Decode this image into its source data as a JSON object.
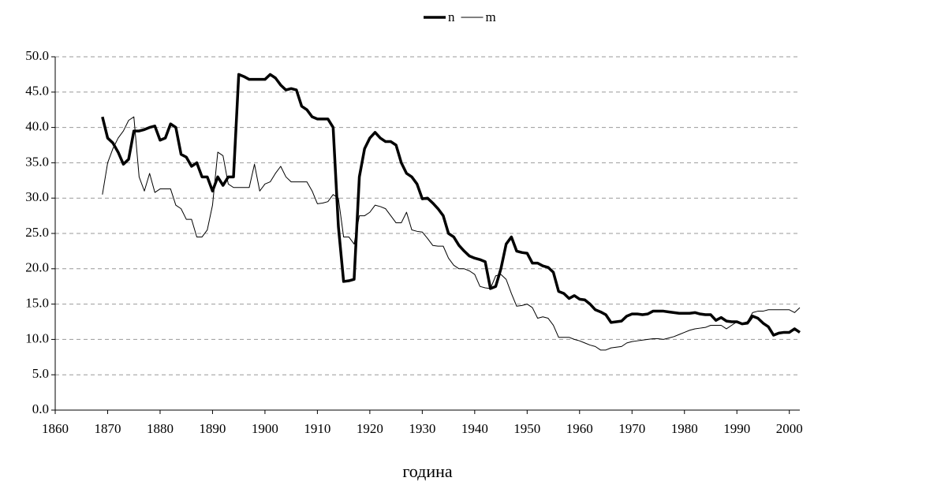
{
  "chart_data": {
    "type": "line",
    "x_label": "година",
    "x": [
      1869,
      1870,
      1871,
      1872,
      1873,
      1874,
      1875,
      1876,
      1877,
      1878,
      1879,
      1880,
      1881,
      1882,
      1883,
      1884,
      1885,
      1886,
      1887,
      1888,
      1889,
      1890,
      1891,
      1892,
      1893,
      1894,
      1895,
      1896,
      1897,
      1898,
      1899,
      1900,
      1901,
      1902,
      1903,
      1904,
      1905,
      1906,
      1907,
      1908,
      1909,
      1910,
      1911,
      1912,
      1913,
      1914,
      1915,
      1916,
      1917,
      1918,
      1919,
      1920,
      1921,
      1922,
      1923,
      1924,
      1925,
      1926,
      1927,
      1928,
      1929,
      1930,
      1931,
      1932,
      1933,
      1934,
      1935,
      1936,
      1937,
      1938,
      1939,
      1940,
      1941,
      1942,
      1943,
      1944,
      1945,
      1946,
      1947,
      1948,
      1949,
      1950,
      1951,
      1952,
      1953,
      1954,
      1955,
      1956,
      1957,
      1958,
      1959,
      1960,
      1961,
      1962,
      1963,
      1964,
      1965,
      1966,
      1967,
      1968,
      1969,
      1970,
      1971,
      1972,
      1973,
      1974,
      1975,
      1976,
      1977,
      1978,
      1979,
      1980,
      1981,
      1982,
      1983,
      1984,
      1985,
      1986,
      1987,
      1988,
      1989,
      1990,
      1991,
      1992,
      1993,
      1994,
      1995,
      1996,
      1997,
      1998,
      1999,
      2000,
      2001,
      2002
    ],
    "series": [
      {
        "name": "n",
        "color": "#000000",
        "width": 3.5,
        "values": [
          41.5,
          38.5,
          37.8,
          36.5,
          34.8,
          35.5,
          39.5,
          39.5,
          39.7,
          40,
          40.2,
          38.2,
          38.5,
          40.5,
          40,
          36.2,
          35.8,
          34.5,
          35,
          33,
          33,
          31,
          33,
          31.8,
          33,
          33,
          47.5,
          47.2,
          46.8,
          46.8,
          46.8,
          46.8,
          47.5,
          47,
          46,
          45.3,
          45.5,
          45.3,
          43,
          42.5,
          41.5,
          41.2,
          41.2,
          41.2,
          40,
          26,
          18.2,
          18.3,
          18.5,
          33,
          37,
          38.5,
          39.3,
          38.5,
          38,
          38,
          37.5,
          35,
          33.5,
          33,
          32,
          29.9,
          30,
          29.3,
          28.5,
          27.5,
          25,
          24.5,
          23.3,
          22.5,
          21.8,
          21.5,
          21.3,
          21,
          17.2,
          17.5,
          20,
          23.5,
          24.5,
          22.5,
          22.3,
          22.2,
          20.8,
          20.8,
          20.4,
          20.2,
          19.5,
          16.8,
          16.5,
          15.8,
          16.2,
          15.7,
          15.6,
          15,
          14.2,
          13.9,
          13.5,
          12.4,
          12.5,
          12.6,
          13.3,
          13.6,
          13.6,
          13.5,
          13.6,
          14,
          14,
          14,
          13.9,
          13.8,
          13.7,
          13.7,
          13.7,
          13.8,
          13.6,
          13.5,
          13.5,
          12.7,
          13.1,
          12.6,
          12.5,
          12.5,
          12.2,
          12.3,
          13.3,
          13,
          12.3,
          11.8,
          10.6,
          10.9,
          11,
          11,
          11.5,
          11
        ]
      },
      {
        "name": "m",
        "color": "#000000",
        "width": 1,
        "values": [
          30.5,
          35,
          37,
          38.5,
          39.5,
          41,
          41.5,
          33,
          31,
          33.5,
          30.8,
          31.3,
          31.3,
          31.3,
          29,
          28.5,
          27,
          27,
          24.5,
          24.5,
          25.5,
          29,
          36.5,
          36,
          32,
          31.5,
          31.5,
          31.5,
          31.5,
          34.8,
          31,
          32,
          32.3,
          33.5,
          34.5,
          33,
          32.3,
          32.3,
          32.3,
          32.3,
          31,
          29.2,
          29.3,
          29.5,
          30.5,
          30,
          24.5,
          24.5,
          23.5,
          27.5,
          27.5,
          28,
          29,
          28.8,
          28.5,
          27.5,
          26.5,
          26.5,
          28,
          25.5,
          25.3,
          25.2,
          24.3,
          23.3,
          23.2,
          23.2,
          21.5,
          20.5,
          20,
          20,
          19.7,
          19.2,
          17.5,
          17.3,
          17.2,
          19,
          19.2,
          18.5,
          16.5,
          14.7,
          14.8,
          15,
          14.5,
          13,
          13.2,
          13,
          12,
          10.3,
          10.3,
          10.3,
          10,
          9.8,
          9.5,
          9.2,
          9,
          8.5,
          8.5,
          8.8,
          8.9,
          9,
          9.5,
          9.7,
          9.8,
          9.9,
          10,
          10.1,
          10.1,
          10,
          10.2,
          10.4,
          10.7,
          11,
          11.3,
          11.5,
          11.6,
          11.7,
          12,
          12,
          12,
          11.5,
          12,
          12.5,
          12.3,
          12.5,
          13.8,
          14,
          14,
          14.2,
          14.2,
          14.2,
          14.2,
          14.2,
          13.8,
          14.5
        ]
      }
    ],
    "xlim": [
      1860,
      2002
    ],
    "xticks": [
      1860,
      1870,
      1880,
      1890,
      1900,
      1910,
      1920,
      1930,
      1940,
      1950,
      1960,
      1970,
      1980,
      1990,
      2000
    ],
    "ylim": [
      0,
      50
    ],
    "yticks": [
      {
        "value": 0,
        "label": "0.0"
      },
      {
        "value": 5,
        "label": "5.0"
      },
      {
        "value": 10,
        "label": "10.0"
      },
      {
        "value": 15,
        "label": "15.0"
      },
      {
        "value": 20,
        "label": "20.0"
      },
      {
        "value": 25,
        "label": "25.0"
      },
      {
        "value": 30,
        "label": "30.0"
      },
      {
        "value": 35,
        "label": "35.0"
      },
      {
        "value": 40,
        "label": "40.0"
      },
      {
        "value": 45,
        "label": "45.0"
      },
      {
        "value": 50,
        "label": "50.0"
      }
    ],
    "grid": true,
    "legend": "top"
  }
}
